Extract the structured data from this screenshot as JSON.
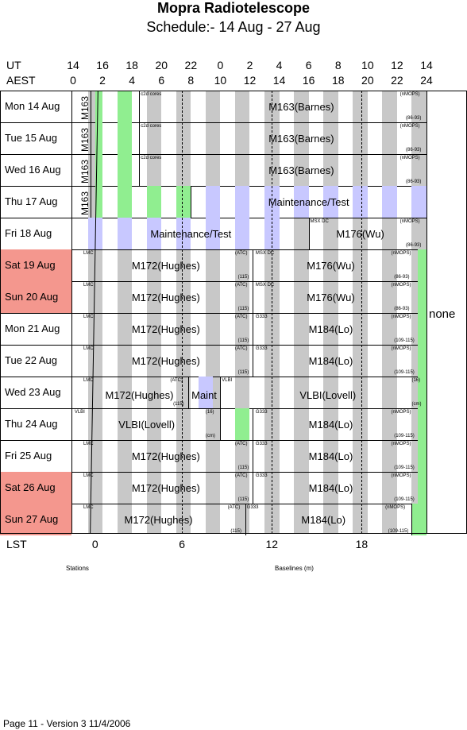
{
  "header": {
    "title": "Mopra Radiotelescope",
    "subtitle": "Schedule:- 14 Aug - 27 Aug"
  },
  "axes": {
    "ut_label": "UT",
    "aest_label": "AEST",
    "lst_label": "LST",
    "ut_ticks": [
      "14",
      "16",
      "18",
      "20",
      "22",
      "0",
      "2",
      "4",
      "6",
      "8",
      "10",
      "12",
      "14"
    ],
    "aest_ticks": [
      "0",
      "2",
      "4",
      "6",
      "8",
      "10",
      "12",
      "14",
      "16",
      "18",
      "20",
      "22",
      "24"
    ],
    "lst_ticks": [
      "0",
      "6",
      "12",
      "18"
    ]
  },
  "days": [
    {
      "label": "Mon  14 Aug",
      "weekend": false
    },
    {
      "label": "Tue   15 Aug",
      "weekend": false
    },
    {
      "label": "Wed  16 Aug",
      "weekend": false
    },
    {
      "label": "Thu   17 Aug",
      "weekend": false
    },
    {
      "label": "Fri    18 Aug",
      "weekend": false
    },
    {
      "label": "Sat   19 Aug",
      "weekend": true
    },
    {
      "label": "Sun  20 Aug",
      "weekend": true
    },
    {
      "label": "Mon  21 Aug",
      "weekend": false
    },
    {
      "label": "Tue   22 Aug",
      "weekend": false
    },
    {
      "label": "Wed  23 Aug",
      "weekend": false
    },
    {
      "label": "Thu   24 Aug",
      "weekend": false
    },
    {
      "label": "Fri    25 Aug",
      "weekend": false
    },
    {
      "label": "Sat   26 Aug",
      "weekend": true
    },
    {
      "label": "Sun  27 Aug",
      "weekend": true
    }
  ],
  "labels": {
    "none": "none",
    "stations": "Stations",
    "baselines": "Baselines (m)",
    "m163": "M163",
    "c2d": "c2d cores",
    "nmops": "(nMOPS)",
    "r8693": "(86-93)",
    "r109": "(109-115)",
    "m163b": "M163(Barnes)",
    "maint": "Maintenance/Test",
    "msxdc": "MSX DC",
    "m176": "M176(Wu)",
    "lmc": "LMC",
    "atc": "(ATC)",
    "r115": "(115)",
    "m172": "M172(Hughes)",
    "g333": "G333",
    "m184": "M184(Lo)",
    "vlbi": "VLBI",
    "vlbil": "VLBI(Lovell)",
    "maint_short": "Maint",
    "r16": "(16)",
    "cm": "(cm)"
  },
  "footer": "Page 11 - Version 3  11/4/2006"
}
